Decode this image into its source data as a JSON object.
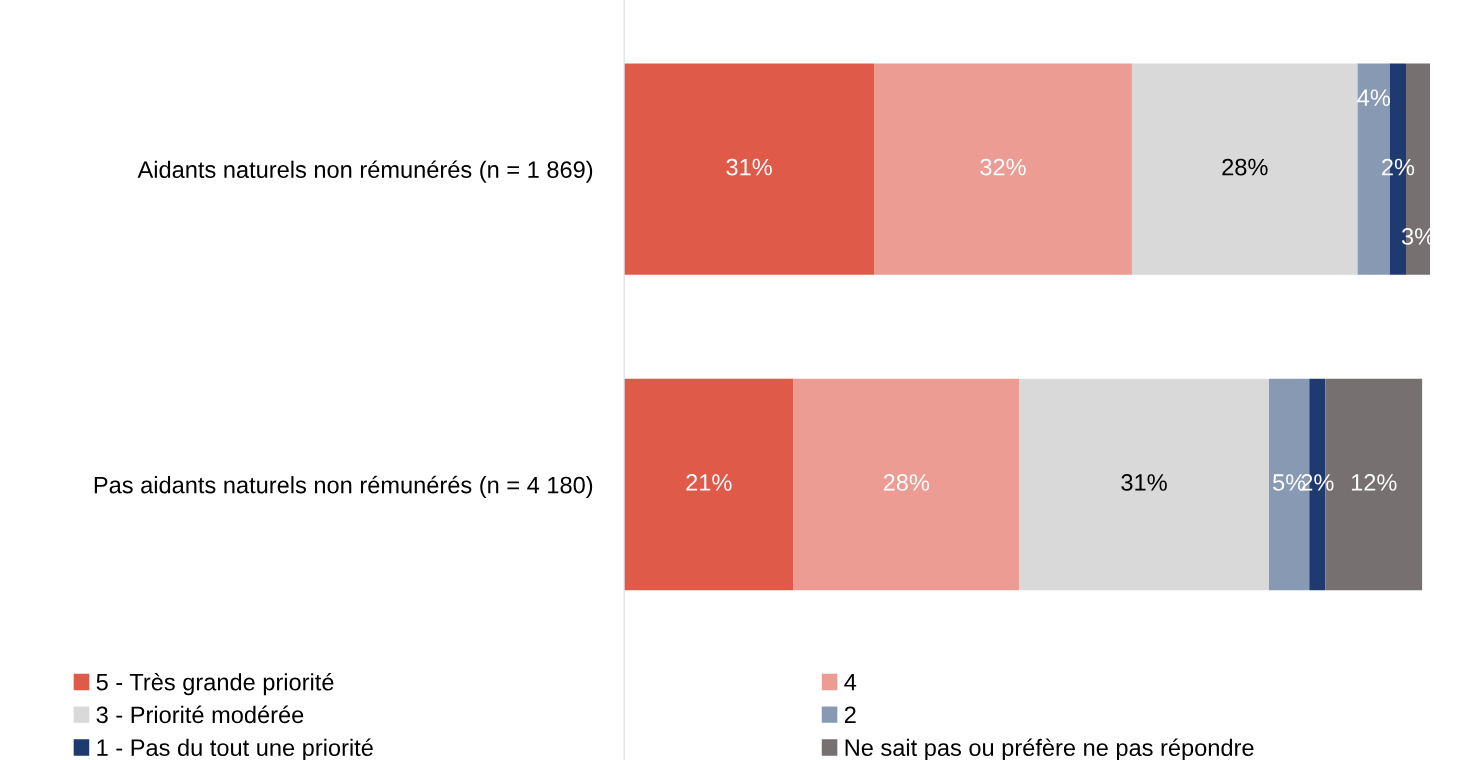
{
  "chart_data": {
    "type": "bar",
    "orientation": "horizontal",
    "stacked": true,
    "tick_labels": "y",
    "legend": "bottom",
    "categories": [
      "Aidants naturels non rémunérés (n = 1 869)",
      "Pas aidants naturels non rémunérés (n = 4 180)"
    ],
    "series": [
      {
        "name": "5 - Très grande priorité",
        "color": "#e05a4a",
        "values": [
          31,
          21
        ],
        "value_labels": [
          "31%",
          "21%"
        ]
      },
      {
        "name": "4",
        "color": "#ec9c93",
        "values": [
          32,
          28
        ],
        "value_labels": [
          "32%",
          "28%"
        ]
      },
      {
        "name": "3 - Priorité modérée",
        "color": "#d9d9d9",
        "values": [
          28,
          31
        ],
        "value_labels": [
          "28%",
          "31%"
        ]
      },
      {
        "name": "2",
        "color": "#8799b3",
        "values": [
          4,
          5
        ],
        "value_labels": [
          "4%",
          "5%"
        ]
      },
      {
        "name": "1 - Pas du tout une priorité",
        "color": "#1f3a6e",
        "values": [
          2,
          2
        ],
        "value_labels": [
          "2%",
          "2%"
        ]
      },
      {
        "name": "Ne sait pas ou préfère ne pas répondre",
        "color": "#767070",
        "values": [
          3,
          12
        ],
        "value_labels": [
          "3%",
          "12%"
        ]
      }
    ]
  }
}
